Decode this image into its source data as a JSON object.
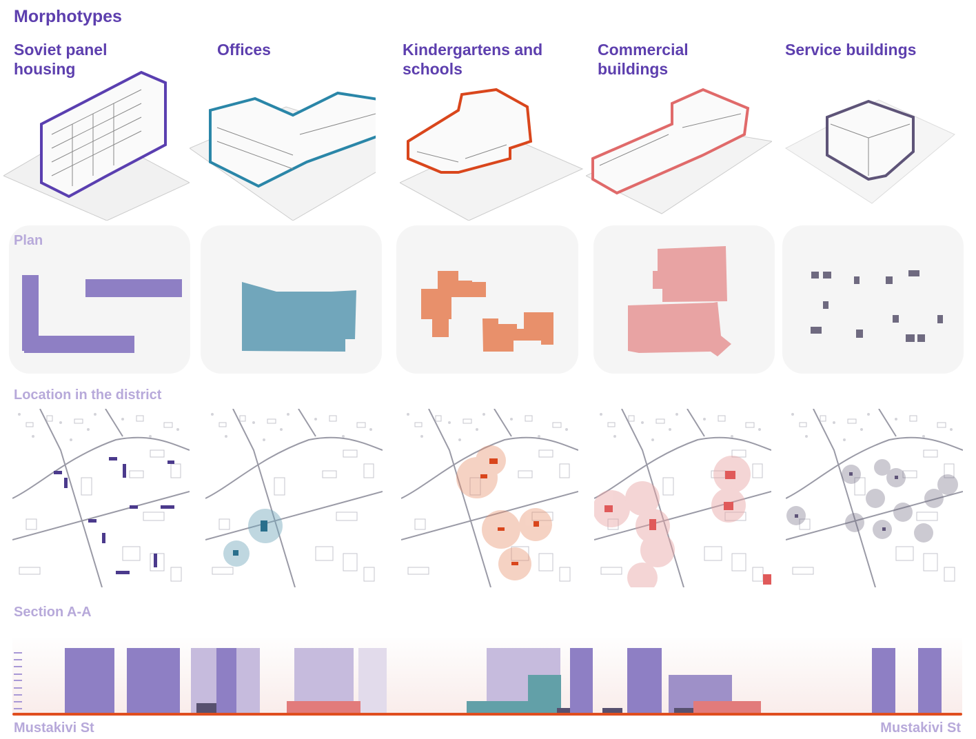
{
  "title": "Morphotypes",
  "morphotypes": [
    {
      "label": "Soviet panel housing",
      "color": "#5a3fb0",
      "plan_color": "#8e7fc4"
    },
    {
      "label": "Offices",
      "color": "#2a86a8",
      "plan_color": "#71a6bb"
    },
    {
      "label": "Kindergartens and schools",
      "color": "#d9461c",
      "plan_color": "#e8906b"
    },
    {
      "label": "Commercial buildings",
      "color": "#e06a6a",
      "plan_color": "#e8a3a3"
    },
    {
      "label": "Service buildings",
      "color": "#5e5478",
      "plan_color": "#6f6a80"
    }
  ],
  "sections": {
    "plan": "Plan",
    "location": "Location in the district",
    "section": "Section A-A"
  },
  "section_aa": {
    "street_left": "Mustakivi St",
    "street_right": "Mustakivi St",
    "ground_color": "#e04e1f"
  }
}
